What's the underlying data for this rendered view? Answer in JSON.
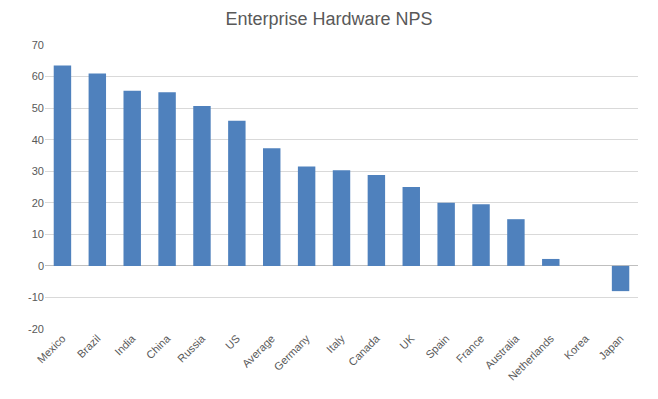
{
  "chart_data": {
    "type": "bar",
    "title": "Enterprise Hardware NPS",
    "categories": [
      "Mexico",
      "Brazil",
      "India",
      "China",
      "Russia",
      "US",
      "Average",
      "Germany",
      "Italy",
      "Canada",
      "UK",
      "Spain",
      "France",
      "Australia",
      "Netherlands",
      "Korea",
      "Japan"
    ],
    "values": [
      63.5,
      61,
      55.5,
      55,
      50.7,
      46,
      37.3,
      31.5,
      30.3,
      28.8,
      25,
      20,
      19.5,
      14.8,
      2.2,
      0,
      -8
    ],
    "color": "#4f81bd",
    "ylim": [
      -20,
      70
    ],
    "yticks": [
      -20,
      -10,
      0,
      10,
      20,
      30,
      40,
      50,
      60,
      70
    ],
    "grid": true
  }
}
